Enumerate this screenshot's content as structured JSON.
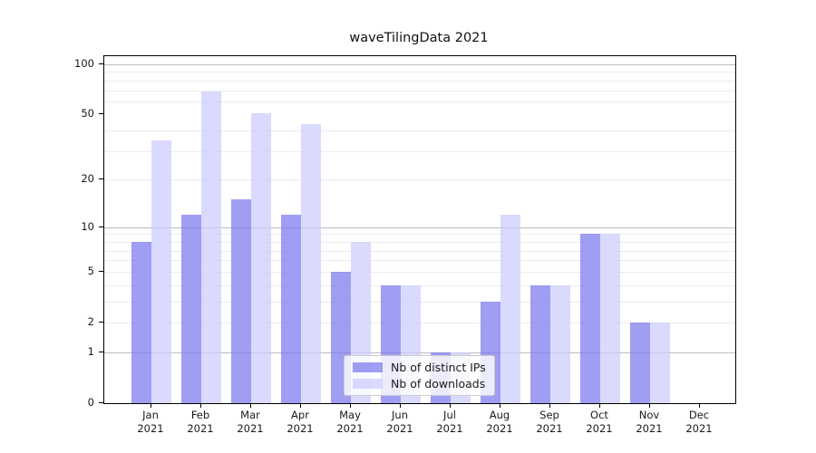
{
  "figure": {
    "title": "waveTilingData 2021",
    "background_hex": "#ffffff",
    "axes_frame_hex": "#000000",
    "major_grid_hex": "#bdbdbd",
    "minor_grid_hex": "#ececec",
    "text_hex": "#1a1a1a"
  },
  "chart_data": {
    "type": "bar",
    "title": "waveTilingData 2021",
    "months": [
      "Jan",
      "Feb",
      "Mar",
      "Apr",
      "May",
      "Jun",
      "Jul",
      "Aug",
      "Sep",
      "Oct",
      "Nov",
      "Dec"
    ],
    "year": "2021",
    "categories": [
      "Jan 2021",
      "Feb 2021",
      "Mar 2021",
      "Apr 2021",
      "May 2021",
      "Jun 2021",
      "Jul 2021",
      "Aug 2021",
      "Sep 2021",
      "Oct 2021",
      "Nov 2021",
      "Dec 2021"
    ],
    "series": [
      {
        "name": "Nb of distinct IPs",
        "color_hex": "#a6a4f4",
        "color_rgba": "rgba(122,120,238,0.72)",
        "values": [
          8,
          12,
          15,
          12,
          5,
          4,
          1,
          3,
          4,
          9,
          2,
          0
        ]
      },
      {
        "name": "Nb of downloads",
        "color_hex": "#dbdbfb",
        "color_rgba": "rgba(204,204,255,0.72)",
        "values": [
          35,
          69,
          51,
          44,
          8,
          4,
          1,
          12,
          4,
          9,
          2,
          0
        ]
      }
    ],
    "xlabel": "",
    "ylabel": "",
    "yaxis": {
      "scale": "log(1+x)",
      "tick_values": [
        0,
        1,
        2,
        5,
        10,
        20,
        50,
        100
      ],
      "tick_labels": [
        "0",
        "1",
        "2",
        "5",
        "10",
        "20",
        "50",
        "100"
      ],
      "major_grid_values": [
        1,
        10,
        100
      ],
      "minor_grid_values": [
        2,
        3,
        4,
        5,
        6,
        7,
        8,
        9,
        20,
        30,
        40,
        60,
        70,
        80,
        90
      ],
      "ylim": [
        0,
        113
      ]
    },
    "grid": true,
    "legend_position": "lower center"
  }
}
